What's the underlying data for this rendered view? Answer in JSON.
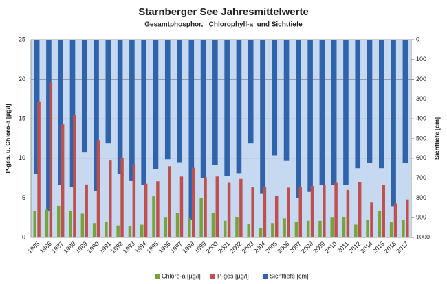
{
  "chart_data": {
    "type": "bar",
    "title": "Starnberger See Jahresmittelwerte",
    "subtitle": "Gesamtphosphor,   Chlorophyll-a  und Sichttiefe",
    "ylabel": "P-ges. u. Chloro-a [µg/l]",
    "y2label": "Sichttiefe [cm]",
    "categories": [
      "1985",
      "1986",
      "1987",
      "1988",
      "1989",
      "1990",
      "1991",
      "1992",
      "1993",
      "1994",
      "1995",
      "1996",
      "1997",
      "1998",
      "1999",
      "2000",
      "2001",
      "2002",
      "2003",
      "2004",
      "2005",
      "2006",
      "2007",
      "2008",
      "2009",
      "2010",
      "2011",
      "2012",
      "2014",
      "2015",
      "2016",
      "2017"
    ],
    "series": [
      {
        "name": "Chloro-a [µg/l]",
        "color": "#77a33a",
        "values": [
          3.3,
          3.5,
          4.0,
          3.3,
          3.0,
          1.8,
          2.0,
          1.5,
          1.4,
          1.6,
          5.2,
          2.5,
          3.1,
          2.4,
          5.0,
          3.1,
          2.1,
          2.6,
          1.7,
          1.2,
          1.8,
          2.4,
          2.0,
          2.1,
          2.1,
          2.5,
          2.6,
          1.6,
          2.2,
          3.3,
          1.9,
          2.2
        ]
      },
      {
        "name": "P-ges [µg/l]",
        "color": "#c0504d",
        "values": [
          17.2,
          19.6,
          14.3,
          15.5,
          6.7,
          12.3,
          9.8,
          10.0,
          9.3,
          6.8,
          7.1,
          9.0,
          7.7,
          8.8,
          7.6,
          7.7,
          6.9,
          7.4,
          6.4,
          6.4,
          5.3,
          6.3,
          6.4,
          6.5,
          6.6,
          6.9,
          6.0,
          7.0,
          4.4,
          6.6,
          4.3,
          4.8
        ]
      },
      {
        "name": "Sichttiefe [cm]",
        "color": "#2f64ad",
        "axis": "y2",
        "values": [
          680,
          865,
          735,
          745,
          570,
          765,
          525,
          680,
          715,
          735,
          655,
          605,
          620,
          910,
          700,
          635,
          690,
          675,
          525,
          780,
          585,
          610,
          800,
          770,
          735,
          735,
          735,
          650,
          625,
          650,
          845,
          625
        ]
      }
    ],
    "ylim": [
      0,
      25
    ],
    "yticks": [
      0,
      5,
      10,
      15,
      20,
      25
    ],
    "y2lim": [
      0,
      1000
    ],
    "y2ticks": [
      0,
      100,
      200,
      300,
      400,
      500,
      600,
      700,
      800,
      900,
      1000
    ],
    "y2_reversed": true,
    "grid": true,
    "legend": "bottom"
  }
}
